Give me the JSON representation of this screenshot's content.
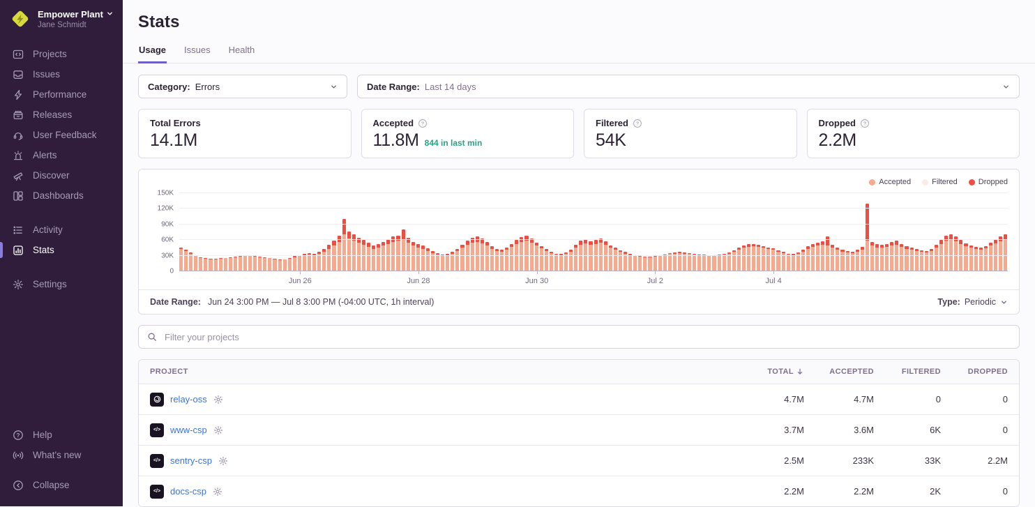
{
  "sidebar": {
    "org": {
      "name": "Empower Plant",
      "user": "Jane Schmidt"
    },
    "groups": [
      {
        "items": [
          {
            "id": "projects",
            "label": "Projects",
            "icon": "projects"
          },
          {
            "id": "issues",
            "label": "Issues",
            "icon": "issues"
          },
          {
            "id": "performance",
            "label": "Performance",
            "icon": "performance"
          },
          {
            "id": "releases",
            "label": "Releases",
            "icon": "releases"
          },
          {
            "id": "user-feedback",
            "label": "User Feedback",
            "icon": "user-feedback"
          },
          {
            "id": "alerts",
            "label": "Alerts",
            "icon": "alerts"
          },
          {
            "id": "discover",
            "label": "Discover",
            "icon": "discover"
          },
          {
            "id": "dashboards",
            "label": "Dashboards",
            "icon": "dashboards"
          }
        ]
      },
      {
        "items": [
          {
            "id": "activity",
            "label": "Activity",
            "icon": "activity"
          },
          {
            "id": "stats",
            "label": "Stats",
            "icon": "stats",
            "active": true
          }
        ]
      },
      {
        "items": [
          {
            "id": "settings",
            "label": "Settings",
            "icon": "settings"
          }
        ]
      }
    ],
    "footer_groups": [
      {
        "items": [
          {
            "id": "help",
            "label": "Help",
            "icon": "help"
          },
          {
            "id": "whats-new",
            "label": "What's new",
            "icon": "broadcast"
          }
        ]
      },
      {
        "items": [
          {
            "id": "collapse",
            "label": "Collapse",
            "icon": "collapse"
          }
        ]
      }
    ]
  },
  "header": {
    "title": "Stats",
    "tabs": [
      {
        "id": "usage",
        "label": "Usage",
        "active": true
      },
      {
        "id": "issues",
        "label": "Issues",
        "active": false
      },
      {
        "id": "health",
        "label": "Health",
        "active": false
      }
    ]
  },
  "filters": {
    "category_label": "Category:",
    "category_value": "Errors",
    "date_range_label": "Date Range:",
    "date_range_value": "Last 14 days"
  },
  "cards": [
    {
      "label": "Total Errors",
      "help": false,
      "value": "14.1M",
      "sub": ""
    },
    {
      "label": "Accepted",
      "help": true,
      "value": "11.8M",
      "sub": "844 in last min"
    },
    {
      "label": "Filtered",
      "help": true,
      "value": "54K",
      "sub": ""
    },
    {
      "label": "Dropped",
      "help": true,
      "value": "2.2M",
      "sub": ""
    }
  ],
  "chart_data": {
    "type": "bar",
    "stacked": true,
    "title": "",
    "xlabel": "",
    "ylabel": "",
    "unit": "thousands of events per interval",
    "interval": "1h (shown aggregated as 2h bins)",
    "ylim": [
      0,
      150
    ],
    "yticks": [
      "0",
      "30K",
      "60K",
      "90K",
      "120K",
      "150K"
    ],
    "grid": true,
    "legend_position": "top-right",
    "xticks": [
      {
        "label": "Jun 26",
        "index": 24
      },
      {
        "label": "Jun 28",
        "index": 48
      },
      {
        "label": "Jun 30",
        "index": 72
      },
      {
        "label": "Jul 2",
        "index": 96
      },
      {
        "label": "Jul 4",
        "index": 120
      }
    ],
    "series": [
      {
        "name": "Accepted",
        "color": "#f6a98c",
        "values": [
          42,
          38,
          33,
          28,
          25,
          23,
          22,
          22,
          23,
          24,
          25,
          26,
          27,
          28,
          28,
          27,
          26,
          25,
          24,
          22,
          20,
          21,
          23,
          26,
          28,
          30,
          31,
          30,
          32,
          36,
          42,
          48,
          55,
          70,
          62,
          58,
          54,
          50,
          46,
          42,
          44,
          48,
          52,
          56,
          58,
          60,
          54,
          48,
          45,
          42,
          38,
          34,
          31,
          29,
          30,
          33,
          38,
          44,
          50,
          54,
          56,
          53,
          48,
          42,
          38,
          36,
          40,
          46,
          52,
          56,
          58,
          54,
          48,
          43,
          38,
          34,
          31,
          30,
          32,
          36,
          44,
          50,
          53,
          50,
          52,
          54,
          50,
          44,
          40,
          36,
          33,
          30,
          28,
          27,
          26,
          26,
          27,
          28,
          30,
          32,
          33,
          34,
          33,
          32,
          31,
          30,
          30,
          29,
          29,
          30,
          31,
          33,
          36,
          40,
          44,
          46,
          47,
          46,
          44,
          42,
          40,
          37,
          34,
          31,
          30,
          32,
          36,
          42,
          46,
          48,
          50,
          48,
          44,
          40,
          37,
          35,
          34,
          36,
          40,
          58,
          48,
          45,
          44,
          46,
          48,
          50,
          46,
          42,
          40,
          38,
          36,
          35,
          38,
          44,
          52,
          58,
          60,
          57,
          52,
          47,
          44,
          42,
          41,
          43,
          48,
          53,
          57,
          60
        ]
      },
      {
        "name": "Filtered",
        "color": "#faede8",
        "constant_value": 0,
        "note": "negligible at this scale, not visibly rendered"
      },
      {
        "name": "Dropped",
        "color": "#ee4e42",
        "values": [
          3,
          3,
          2,
          2,
          1,
          1,
          1,
          1,
          1,
          1,
          1,
          1,
          1,
          1,
          1,
          1,
          1,
          1,
          1,
          1,
          1,
          1,
          1,
          2,
          2,
          2,
          3,
          3,
          4,
          6,
          8,
          10,
          12,
          30,
          14,
          12,
          10,
          9,
          8,
          7,
          7,
          8,
          9,
          10,
          10,
          20,
          10,
          8,
          7,
          6,
          5,
          4,
          3,
          2,
          2,
          3,
          4,
          6,
          8,
          9,
          10,
          9,
          7,
          5,
          4,
          4,
          5,
          6,
          8,
          9,
          10,
          8,
          6,
          5,
          4,
          3,
          2,
          2,
          3,
          4,
          6,
          8,
          8,
          7,
          8,
          8,
          7,
          5,
          4,
          3,
          3,
          2,
          2,
          1,
          1,
          1,
          1,
          1,
          1,
          2,
          2,
          2,
          2,
          2,
          1,
          1,
          1,
          1,
          1,
          1,
          2,
          2,
          3,
          4,
          5,
          5,
          5,
          4,
          4,
          3,
          3,
          2,
          2,
          2,
          2,
          3,
          4,
          5,
          6,
          6,
          7,
          18,
          6,
          5,
          4,
          3,
          3,
          4,
          6,
          72,
          8,
          6,
          6,
          6,
          7,
          8,
          6,
          5,
          4,
          4,
          3,
          3,
          4,
          6,
          8,
          10,
          10,
          9,
          8,
          6,
          5,
          4,
          4,
          5,
          6,
          8,
          9,
          10
        ]
      }
    ]
  },
  "chart_footer": {
    "label": "Date Range:",
    "value": "Jun 24 3:00 PM — Jul 8 3:00 PM (-04:00 UTC, 1h interval)",
    "type_label": "Type:",
    "type_value": "Periodic"
  },
  "search": {
    "placeholder": "Filter your projects"
  },
  "table": {
    "columns": [
      {
        "key": "project",
        "label": "PROJECT",
        "align": "left",
        "sorted": false
      },
      {
        "key": "total",
        "label": "TOTAL",
        "align": "right",
        "sorted": true
      },
      {
        "key": "accepted",
        "label": "ACCEPTED",
        "align": "right",
        "sorted": false
      },
      {
        "key": "filtered",
        "label": "FILTERED",
        "align": "right",
        "sorted": false
      },
      {
        "key": "dropped",
        "label": "DROPPED",
        "align": "right",
        "sorted": false
      }
    ],
    "rows": [
      {
        "project": "relay-oss",
        "platform": "relay",
        "total": "4.7M",
        "accepted": "4.7M",
        "filtered": "0",
        "dropped": "0"
      },
      {
        "project": "www-csp",
        "platform": "csp",
        "total": "3.7M",
        "accepted": "3.6M",
        "filtered": "6K",
        "dropped": "0"
      },
      {
        "project": "sentry-csp",
        "platform": "csp",
        "total": "2.5M",
        "accepted": "233K",
        "filtered": "33K",
        "dropped": "2.2M"
      },
      {
        "project": "docs-csp",
        "platform": "csp",
        "total": "2.2M",
        "accepted": "2.2M",
        "filtered": "2K",
        "dropped": "0"
      }
    ]
  },
  "colors": {
    "sidebar_bg": "#2f1d3b",
    "accent_purple": "#6c5fc7",
    "active_indicator": "#8a7de0",
    "link_blue": "#3d74db",
    "teal": "#2ba185",
    "accepted_bar": "#f6a98c",
    "dropped_bar": "#ee4e42",
    "filtered_dot": "#faede8",
    "logo_yellow": "#d9d83c"
  }
}
